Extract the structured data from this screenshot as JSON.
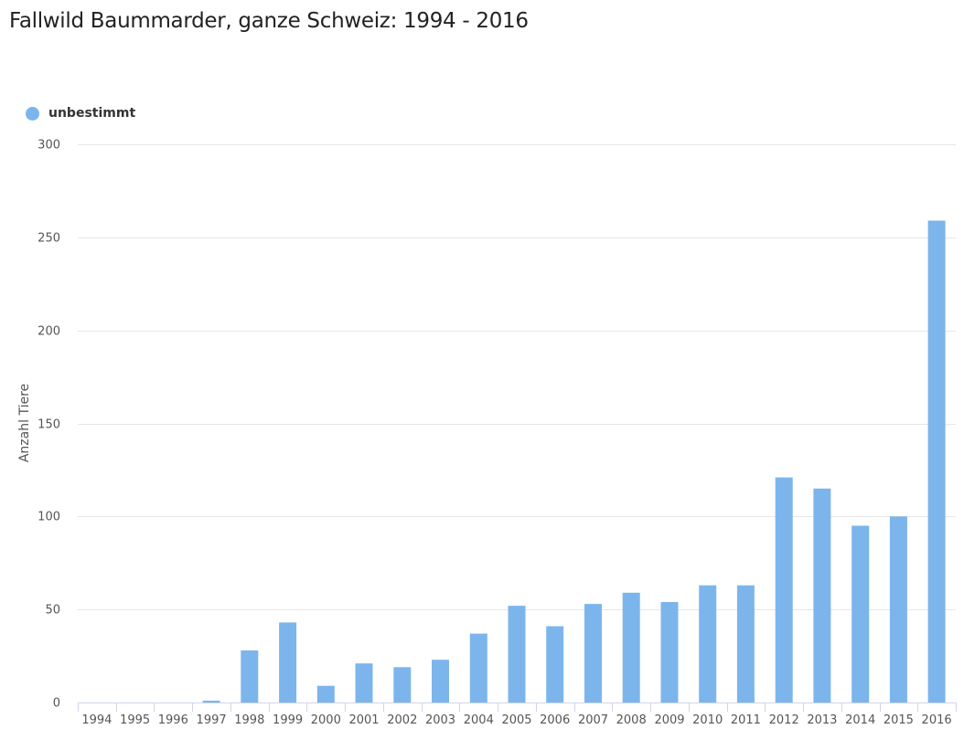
{
  "chart_data": {
    "type": "bar",
    "title": "Fallwild Baummarder, ganze Schweiz: 1994 - 2016",
    "xlabel": "",
    "ylabel": "Anzahl Tiere",
    "ylim": [
      0,
      300
    ],
    "yticks": [
      0,
      50,
      100,
      150,
      200,
      250,
      300
    ],
    "grid": true,
    "legend": "top-left",
    "categories": [
      "1994",
      "1995",
      "1996",
      "1997",
      "1998",
      "1999",
      "2000",
      "2001",
      "2002",
      "2003",
      "2004",
      "2005",
      "2006",
      "2007",
      "2008",
      "2009",
      "2010",
      "2011",
      "2012",
      "2013",
      "2014",
      "2015",
      "2016"
    ],
    "series": [
      {
        "name": "unbestimmt",
        "color": "#7cb5ec",
        "values": [
          0,
          0,
          0,
          1,
          28,
          43,
          9,
          21,
          19,
          23,
          37,
          52,
          41,
          53,
          59,
          54,
          63,
          63,
          121,
          115,
          95,
          100,
          259
        ]
      }
    ]
  }
}
